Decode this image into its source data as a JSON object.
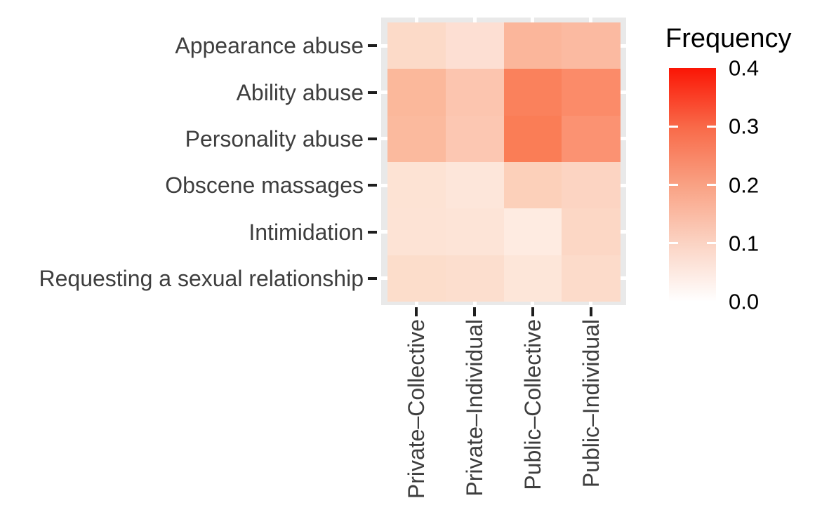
{
  "chart_data": {
    "type": "heatmap",
    "legend_title": "Frequency",
    "x_categories": [
      "Private–Collective",
      "Private–Individual",
      "Public–Collective",
      "Public–Individual"
    ],
    "y_categories": [
      "Appearance abuse",
      "Ability abuse",
      "Personality abuse",
      "Obscene massages",
      "Intimidation",
      "Requesting a sexual relationship"
    ],
    "values": [
      [
        0.09,
        0.07,
        0.16,
        0.15
      ],
      [
        0.15,
        0.13,
        0.27,
        0.25
      ],
      [
        0.15,
        0.12,
        0.28,
        0.23
      ],
      [
        0.07,
        0.06,
        0.11,
        0.1
      ],
      [
        0.07,
        0.06,
        0.05,
        0.09
      ],
      [
        0.08,
        0.08,
        0.06,
        0.08
      ]
    ],
    "cell_colors": [
      [
        "#FCDAC8",
        "#FDDFD3",
        "#FBB69B",
        "#FBBAA1"
      ],
      [
        "#FBB89B",
        "#FCC5AF",
        "#FA815C",
        "#FB8B69"
      ],
      [
        "#FBBA9E",
        "#FCC7B2",
        "#FA7D56",
        "#FB9272"
      ],
      [
        "#FDE3D4",
        "#FDE6DA",
        "#FCD0BA",
        "#FCD4C2"
      ],
      [
        "#FDE3D5",
        "#FDE4D7",
        "#FEEBE1",
        "#FCD7C5"
      ],
      [
        "#FCDDCB",
        "#FCDECE",
        "#FDE6D9",
        "#FCDBCA"
      ]
    ],
    "color_scale": {
      "min": 0.0,
      "max": 0.4,
      "ticks": [
        0.4,
        0.3,
        0.2,
        0.1,
        0.0
      ],
      "tick_labels": [
        "0.4",
        "0.3",
        "0.2",
        "0.1",
        "0.0"
      ],
      "low_color": "#FFFFFF",
      "high_color": "#FA1505",
      "gradient_stops": [
        {
          "pos": 0.0,
          "color": "#FA1505"
        },
        {
          "pos": 0.25,
          "color": "#F96948"
        },
        {
          "pos": 0.5,
          "color": "#F9A183"
        },
        {
          "pos": 0.75,
          "color": "#FBD3C3"
        },
        {
          "pos": 1.0,
          "color": "#FFFFFF"
        }
      ]
    },
    "legend_position": "right",
    "panel_background": "#E9E9E9",
    "gridline_color": "#FFFFFF",
    "figure_background": "#FFFFFF",
    "grid": "on"
  }
}
